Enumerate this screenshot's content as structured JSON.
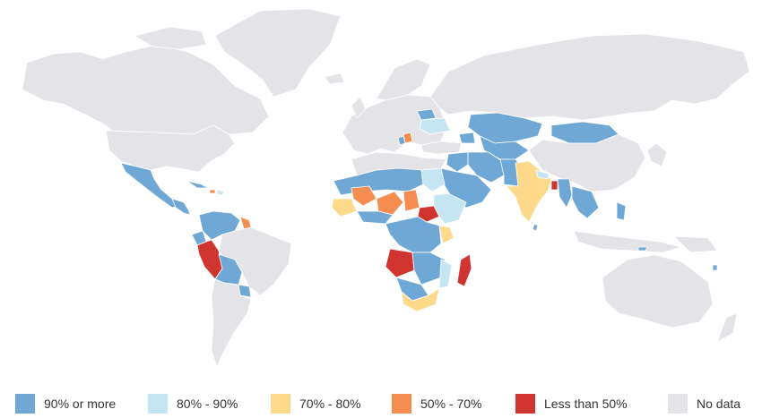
{
  "legend": [
    {
      "label": "90% or more",
      "color": "#6fa8d4"
    },
    {
      "label": "80% - 90%",
      "color": "#c6e5f3"
    },
    {
      "label": "70% - 80%",
      "color": "#fdd98b"
    },
    {
      "label": "50% - 70%",
      "color": "#f58d50"
    },
    {
      "label": "Less than 50%",
      "color": "#cf3430"
    },
    {
      "label": "No data",
      "color": "#e3e3e8"
    }
  ],
  "map_colors": {
    "no_data": "#e3e3e8",
    "border": "#ffffff"
  }
}
